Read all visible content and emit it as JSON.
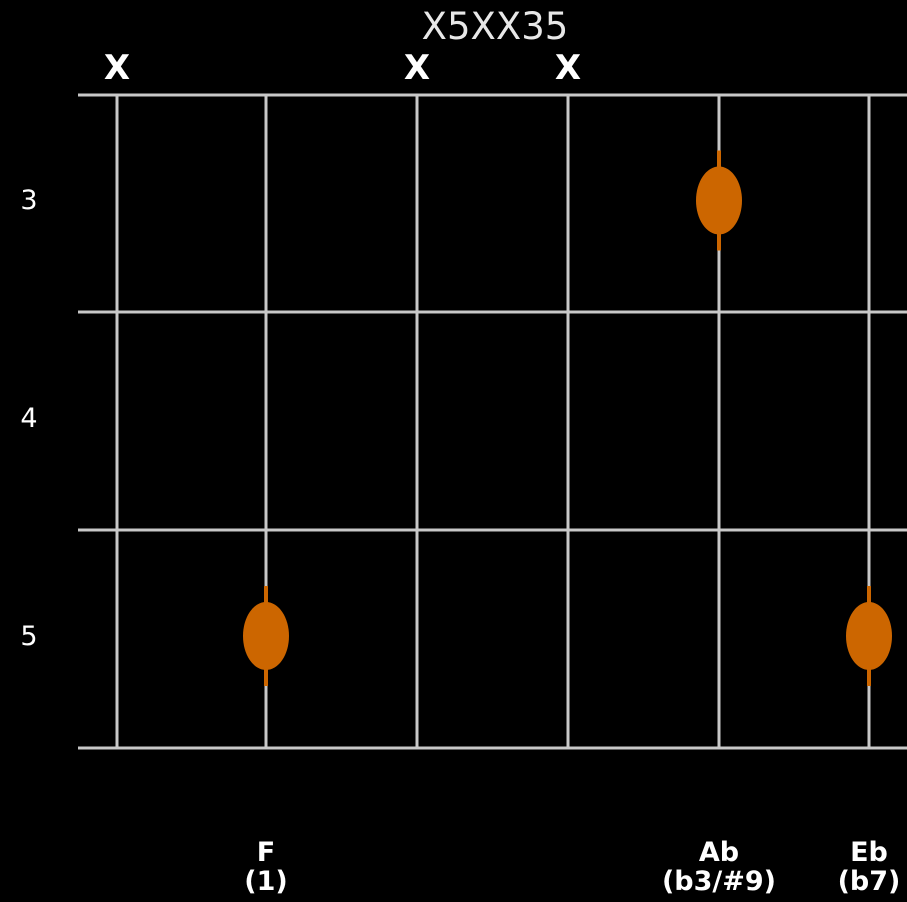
{
  "diagram": {
    "title": "X5XX35",
    "colors": {
      "background": "#000000",
      "grid": "#c8c8c8",
      "dot": "#cc6600",
      "text": "#ffffff"
    },
    "strings": [
      {
        "mute_label": "X",
        "note": "",
        "interval": ""
      },
      {
        "mute_label": "",
        "note": "F",
        "interval": "(1)"
      },
      {
        "mute_label": "X",
        "note": "",
        "interval": ""
      },
      {
        "mute_label": "X",
        "note": "",
        "interval": ""
      },
      {
        "mute_label": "",
        "note": "Ab",
        "interval": "(b3/#9)"
      },
      {
        "mute_label": "",
        "note": "Eb",
        "interval": "(b7)"
      }
    ],
    "fret_labels": [
      "3",
      "4",
      "5"
    ],
    "fretted_notes": [
      {
        "string": 2,
        "fret": 5
      },
      {
        "string": 5,
        "fret": 3
      },
      {
        "string": 6,
        "fret": 5
      }
    ]
  }
}
